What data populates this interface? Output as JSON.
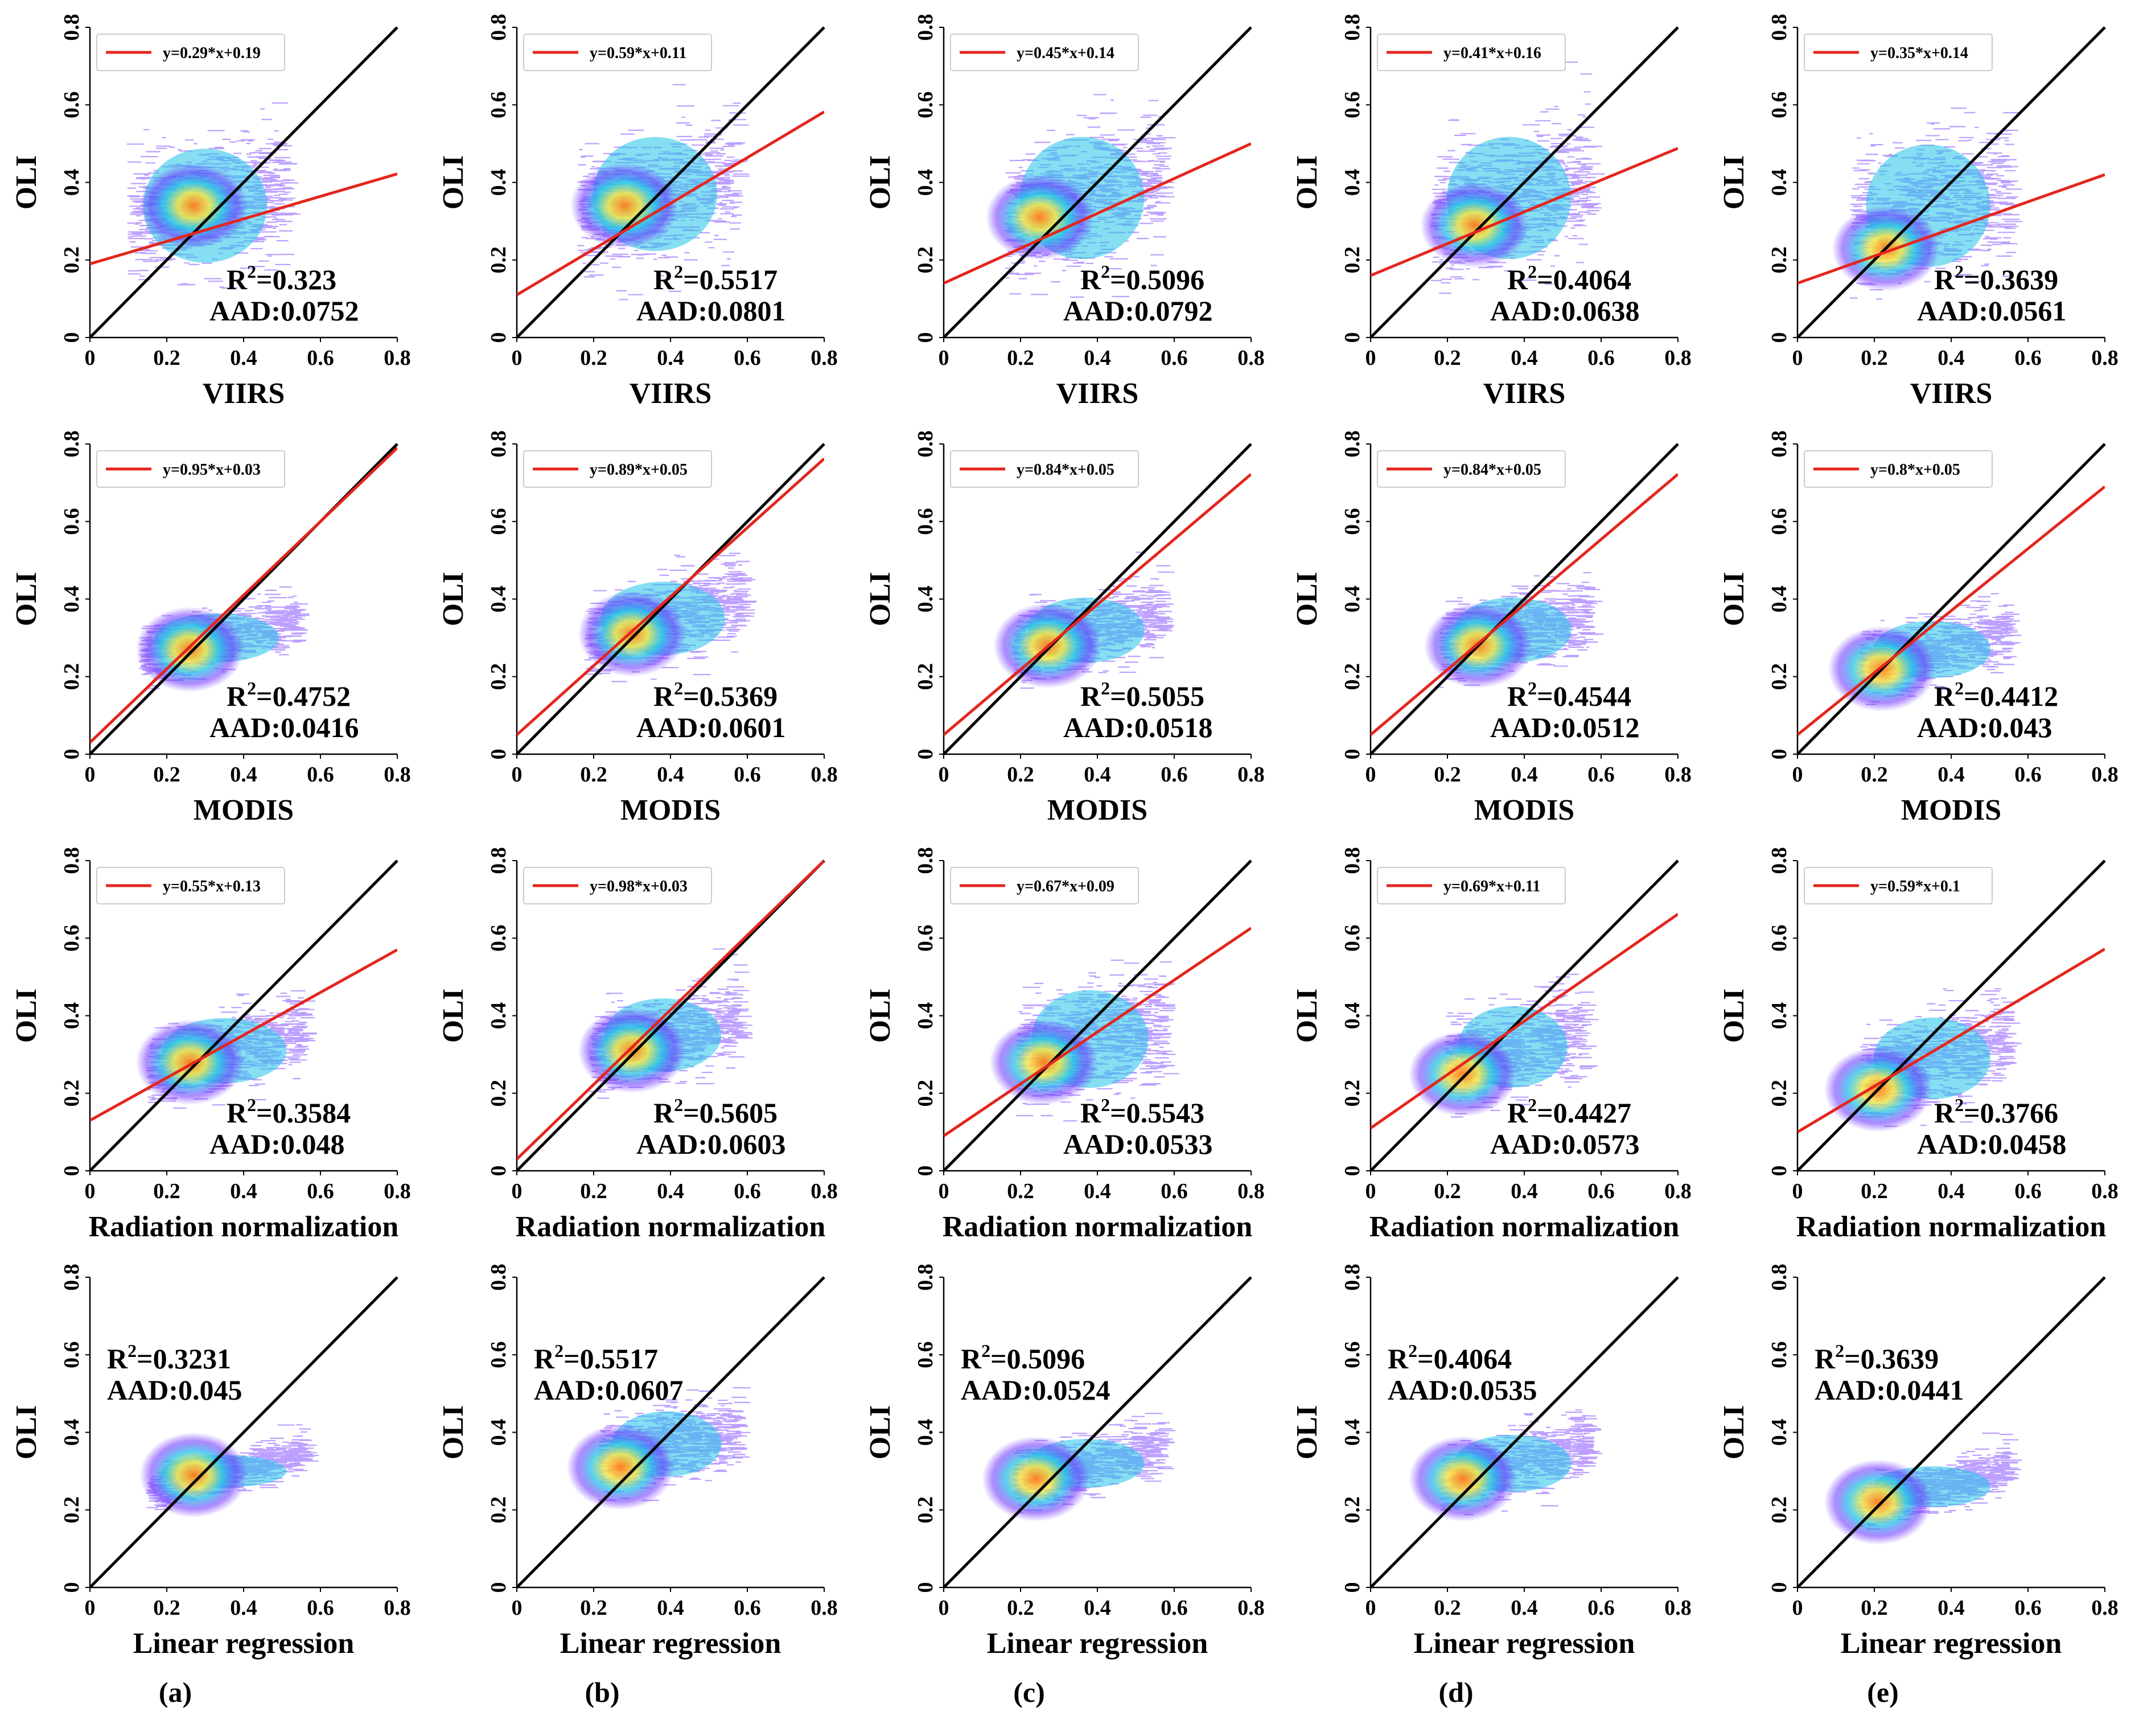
{
  "figure": {
    "panel_labels": [
      "(a)",
      "(b)",
      "(c)",
      "(d)",
      "(e)"
    ]
  },
  "colors": {
    "identity_line": "#000000",
    "fit_line": "#e3261e",
    "density_low": "#6a2bff",
    "density_mid": "#22c3e8",
    "density_high": "#ff7a1a"
  },
  "chart_data": {
    "type": "scatter",
    "ylabel": "OLI",
    "xlim": [
      0,
      0.8
    ],
    "ylim": [
      0,
      0.8
    ],
    "ticks": [
      "0",
      "0.2",
      "0.4",
      "0.6",
      "0.8"
    ],
    "rows": [
      {
        "xlabel": "VIIRS",
        "panels": [
          {
            "legend": "y=0.29*x+0.19",
            "slope": 0.29,
            "intercept": 0.19,
            "r2": "0.323",
            "aad": "AAD:0.0752"
          },
          {
            "legend": "y=0.59*x+0.11",
            "slope": 0.59,
            "intercept": 0.11,
            "r2": "0.5517",
            "aad": "AAD:0.0801"
          },
          {
            "legend": "y=0.45*x+0.14",
            "slope": 0.45,
            "intercept": 0.14,
            "r2": "0.5096",
            "aad": "AAD:0.0792"
          },
          {
            "legend": "y=0.41*x+0.16",
            "slope": 0.41,
            "intercept": 0.16,
            "r2": "0.4064",
            "aad": "AAD:0.0638"
          },
          {
            "legend": "y=0.35*x+0.14",
            "slope": 0.35,
            "intercept": 0.14,
            "r2": "0.3639",
            "aad": "AAD:0.0561"
          }
        ]
      },
      {
        "xlabel": "MODIS",
        "panels": [
          {
            "legend": "y=0.95*x+0.03",
            "slope": 0.95,
            "intercept": 0.03,
            "r2": "0.4752",
            "aad": "AAD:0.0416"
          },
          {
            "legend": "y=0.89*x+0.05",
            "slope": 0.89,
            "intercept": 0.05,
            "r2": "0.5369",
            "aad": "AAD:0.0601"
          },
          {
            "legend": "y=0.84*x+0.05",
            "slope": 0.84,
            "intercept": 0.05,
            "r2": "0.5055",
            "aad": "AAD:0.0518"
          },
          {
            "legend": "y=0.84*x+0.05",
            "slope": 0.84,
            "intercept": 0.05,
            "r2": "0.4544",
            "aad": "AAD:0.0512"
          },
          {
            "legend": "y=0.8*x+0.05",
            "slope": 0.8,
            "intercept": 0.05,
            "r2": "0.4412",
            "aad": "AAD:0.043"
          }
        ]
      },
      {
        "xlabel": "Radiation normalization",
        "panels": [
          {
            "legend": "y=0.55*x+0.13",
            "slope": 0.55,
            "intercept": 0.13,
            "r2": "0.3584",
            "aad": "AAD:0.048"
          },
          {
            "legend": "y=0.98*x+0.03",
            "slope": 0.98,
            "intercept": 0.03,
            "r2": "0.5605",
            "aad": "AAD:0.0603"
          },
          {
            "legend": "y=0.67*x+0.09",
            "slope": 0.67,
            "intercept": 0.09,
            "r2": "0.5543",
            "aad": "AAD:0.0533"
          },
          {
            "legend": "y=0.69*x+0.11",
            "slope": 0.69,
            "intercept": 0.11,
            "r2": "0.4427",
            "aad": "AAD:0.0573"
          },
          {
            "legend": "y=0.59*x+0.1",
            "slope": 0.59,
            "intercept": 0.1,
            "r2": "0.3766",
            "aad": "AAD:0.0458"
          }
        ]
      },
      {
        "xlabel": "Linear regression",
        "panels": [
          {
            "legend": null,
            "slope": null,
            "intercept": null,
            "r2": "0.3231",
            "aad": "AAD:0.045"
          },
          {
            "legend": null,
            "slope": null,
            "intercept": null,
            "r2": "0.5517",
            "aad": "AAD:0.0607"
          },
          {
            "legend": null,
            "slope": null,
            "intercept": null,
            "r2": "0.5096",
            "aad": "AAD:0.0524"
          },
          {
            "legend": null,
            "slope": null,
            "intercept": null,
            "r2": "0.4064",
            "aad": "AAD:0.0535"
          },
          {
            "legend": null,
            "slope": null,
            "intercept": null,
            "r2": "0.3639",
            "aad": "AAD:0.0441"
          }
        ]
      }
    ]
  }
}
